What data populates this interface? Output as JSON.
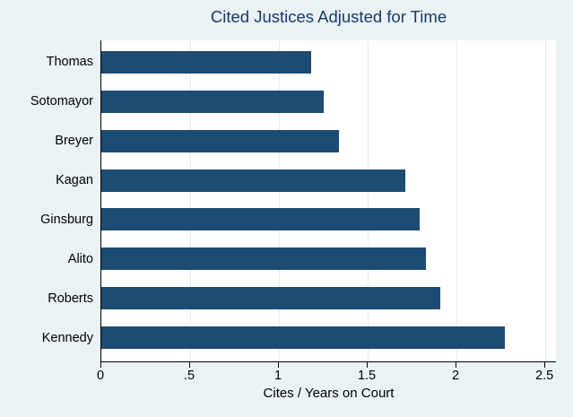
{
  "chart_data": {
    "type": "bar",
    "orientation": "horizontal",
    "title": "Cited Justices Adjusted for Time",
    "xlabel": "Cites / Years on Court",
    "ylabel": "",
    "categories": [
      "Thomas",
      "Sotomayor",
      "Breyer",
      "Kagan",
      "Ginsburg",
      "Alito",
      "Roberts",
      "Kennedy"
    ],
    "values": [
      1.18,
      1.25,
      1.34,
      1.71,
      1.79,
      1.83,
      1.91,
      2.27
    ],
    "xlim": [
      0,
      2.56
    ],
    "xticks": [
      0,
      0.5,
      1,
      1.5,
      2,
      2.5
    ],
    "xtick_labels": [
      "0",
      ".5",
      "1",
      "1.5",
      "2",
      "2.5"
    ],
    "grid": true,
    "legend": "none",
    "colors": {
      "bar": "#1d4b73",
      "background": "#eaf2f3",
      "plot_background": "#ffffff",
      "gridline": "#e2edef",
      "title_text": "#18386c",
      "axis": "#000000"
    }
  }
}
